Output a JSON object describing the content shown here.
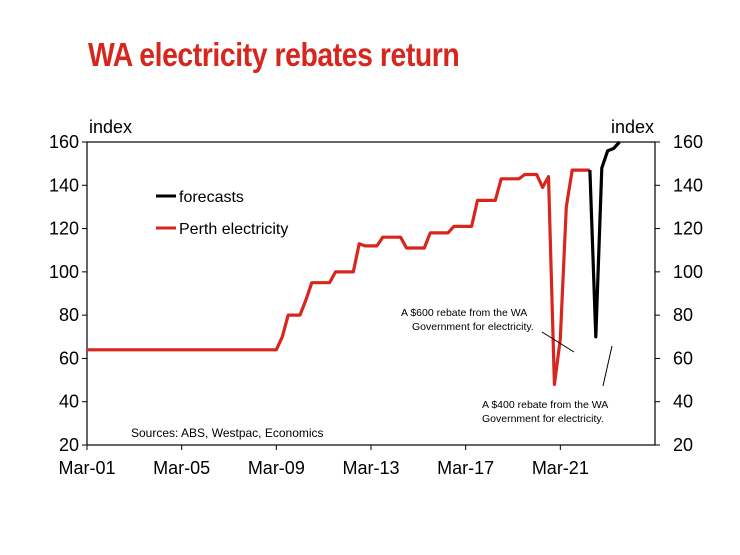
{
  "title": "WA electricity rebates return",
  "chart_data": {
    "type": "line",
    "title": "WA electricity rebates return",
    "left_axis_label": "index",
    "right_axis_label": "index",
    "ylim": [
      20,
      160
    ],
    "yticks": [
      20,
      40,
      60,
      80,
      100,
      120,
      140,
      160
    ],
    "xlim": [
      2001.0,
      2025.0
    ],
    "xticks": [
      {
        "value": 2001.0,
        "label": "Mar-01"
      },
      {
        "value": 2005.0,
        "label": "Mar-05"
      },
      {
        "value": 2009.0,
        "label": "Mar-09"
      },
      {
        "value": 2013.0,
        "label": "Mar-13"
      },
      {
        "value": 2017.0,
        "label": "Mar-17"
      },
      {
        "value": 2021.0,
        "label": "Mar-21"
      }
    ],
    "legend_position": "upper-left",
    "series": [
      {
        "name": "Perth electricity",
        "color": "#d7261e",
        "points": [
          [
            2001.0,
            64
          ],
          [
            2009.0,
            64
          ],
          [
            2009.25,
            70
          ],
          [
            2009.5,
            80
          ],
          [
            2010.0,
            80
          ],
          [
            2010.25,
            87
          ],
          [
            2010.5,
            95
          ],
          [
            2011.25,
            95
          ],
          [
            2011.5,
            100
          ],
          [
            2012.25,
            100
          ],
          [
            2012.5,
            113
          ],
          [
            2012.75,
            112
          ],
          [
            2013.25,
            112
          ],
          [
            2013.5,
            116
          ],
          [
            2014.25,
            116
          ],
          [
            2014.5,
            111
          ],
          [
            2015.25,
            111
          ],
          [
            2015.5,
            118
          ],
          [
            2016.25,
            118
          ],
          [
            2016.5,
            121
          ],
          [
            2017.25,
            121
          ],
          [
            2017.5,
            133
          ],
          [
            2018.25,
            133
          ],
          [
            2018.5,
            143
          ],
          [
            2019.25,
            143
          ],
          [
            2019.5,
            145
          ],
          [
            2020.0,
            145
          ],
          [
            2020.25,
            139
          ],
          [
            2020.5,
            144
          ],
          [
            2020.75,
            48
          ],
          [
            2021.0,
            69
          ],
          [
            2021.25,
            130
          ],
          [
            2021.5,
            147
          ],
          [
            2022.25,
            147
          ]
        ]
      },
      {
        "name": "forecasts",
        "color": "#000000",
        "points": [
          [
            2022.25,
            147
          ],
          [
            2022.5,
            70
          ],
          [
            2022.75,
            148
          ],
          [
            2023.0,
            156
          ],
          [
            2023.25,
            157
          ],
          [
            2023.5,
            161
          ]
        ]
      }
    ],
    "annotations": [
      {
        "lines": [
          "A $600 rebate from the WA",
          "Government for electricity."
        ]
      },
      {
        "lines": [
          "A $400 rebate from the WA",
          "Government for electricity."
        ]
      }
    ],
    "source": "Sources: ABS, Westpac, Economics"
  }
}
